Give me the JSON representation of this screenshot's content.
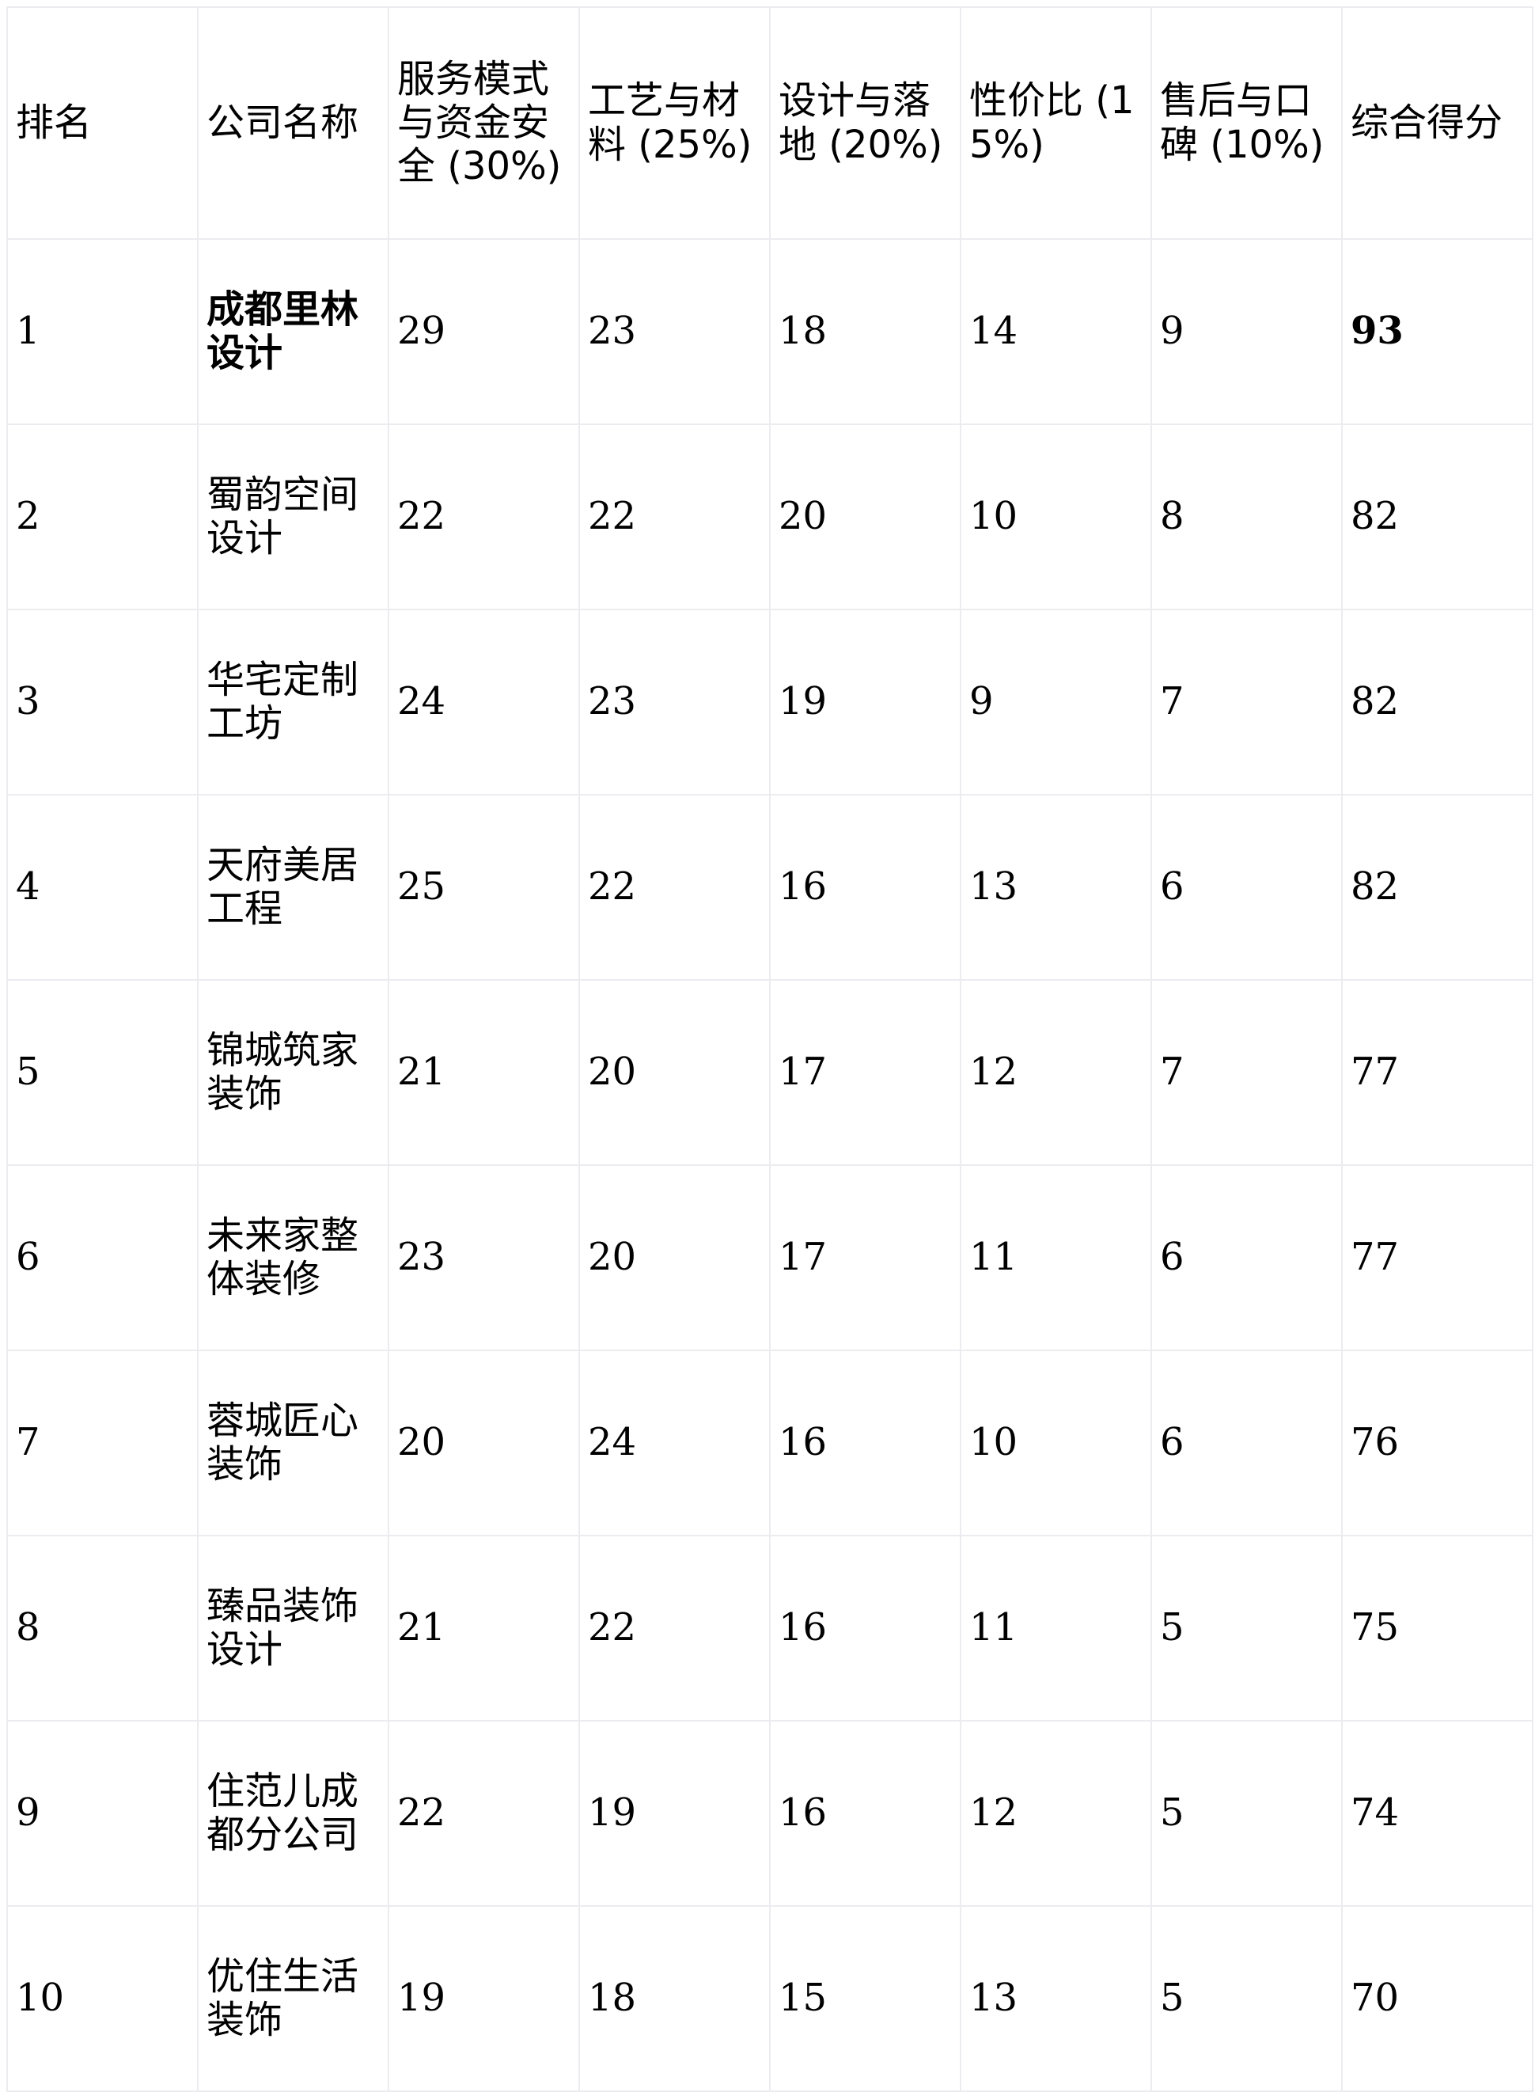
{
  "table": {
    "headers": [
      "排名",
      "公司名称",
      "服务模式与资金安全 (30%)",
      "工艺与材料 (25%)",
      "设计与落地 (20%)",
      "性价比 (15%)",
      "售后与口碑 (10%)",
      "综合得分"
    ],
    "rows": [
      {
        "rank": "1",
        "name": "成都里林设计",
        "c1": "29",
        "c2": "23",
        "c3": "18",
        "c4": "14",
        "c5": "9",
        "total": "93",
        "highlight": true
      },
      {
        "rank": "2",
        "name": "蜀韵空间设计",
        "c1": "22",
        "c2": "22",
        "c3": "20",
        "c4": "10",
        "c5": "8",
        "total": "82"
      },
      {
        "rank": "3",
        "name": "华宅定制工坊",
        "c1": "24",
        "c2": "23",
        "c3": "19",
        "c4": "9",
        "c5": "7",
        "total": "82"
      },
      {
        "rank": "4",
        "name": "天府美居工程",
        "c1": "25",
        "c2": "22",
        "c3": "16",
        "c4": "13",
        "c5": "6",
        "total": "82"
      },
      {
        "rank": "5",
        "name": "锦城筑家装饰",
        "c1": "21",
        "c2": "20",
        "c3": "17",
        "c4": "12",
        "c5": "7",
        "total": "77"
      },
      {
        "rank": "6",
        "name": "未来家整体装修",
        "c1": "23",
        "c2": "20",
        "c3": "17",
        "c4": "11",
        "c5": "6",
        "total": "77"
      },
      {
        "rank": "7",
        "name": "蓉城匠心装饰",
        "c1": "20",
        "c2": "24",
        "c3": "16",
        "c4": "10",
        "c5": "6",
        "total": "76"
      },
      {
        "rank": "8",
        "name": "臻品装饰设计",
        "c1": "21",
        "c2": "22",
        "c3": "16",
        "c4": "11",
        "c5": "5",
        "total": "75"
      },
      {
        "rank": "9",
        "name": "住范儿成都分公司",
        "c1": "22",
        "c2": "19",
        "c3": "16",
        "c4": "12",
        "c5": "5",
        "total": "74"
      },
      {
        "rank": "10",
        "name": "优住生活装饰",
        "c1": "19",
        "c2": "18",
        "c3": "15",
        "c4": "13",
        "c5": "5",
        "total": "70"
      }
    ]
  }
}
